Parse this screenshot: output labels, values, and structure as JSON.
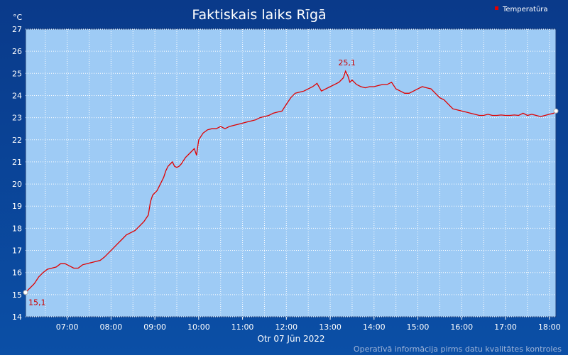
{
  "chart_data": {
    "type": "line",
    "title": "Faktiskais laiks Rīgā",
    "ylabel": "°C",
    "xlabel": "Otr 07 Jūn 2022",
    "footer": "Operatīvā informācija pirms datu kvalitātes kontroles",
    "ylim": [
      14,
      27
    ],
    "xlim": [
      6.05,
      18.15
    ],
    "yticks": [
      14,
      15,
      16,
      17,
      18,
      19,
      20,
      21,
      22,
      23,
      24,
      25,
      26,
      27
    ],
    "xticks": [
      {
        "x": 7,
        "label": "07:00"
      },
      {
        "x": 8,
        "label": "08:00"
      },
      {
        "x": 9,
        "label": "09:00"
      },
      {
        "x": 10,
        "label": "10:00"
      },
      {
        "x": 11,
        "label": "11:00"
      },
      {
        "x": 12,
        "label": "12:00"
      },
      {
        "x": 13,
        "label": "13:00"
      },
      {
        "x": 14,
        "label": "14:00"
      },
      {
        "x": 15,
        "label": "15:00"
      },
      {
        "x": 16,
        "label": "16:00"
      },
      {
        "x": 17,
        "label": "17:00"
      },
      {
        "x": 18,
        "label": "18:00"
      }
    ],
    "grid": true,
    "legend": "top-right",
    "series": [
      {
        "name": "Temperatūra",
        "color": "#e00000",
        "x": [
          6.05,
          6.15,
          6.25,
          6.35,
          6.45,
          6.55,
          6.65,
          6.75,
          6.85,
          6.95,
          7.05,
          7.15,
          7.25,
          7.35,
          7.45,
          7.55,
          7.65,
          7.75,
          7.85,
          7.95,
          8.05,
          8.15,
          8.25,
          8.35,
          8.45,
          8.55,
          8.65,
          8.75,
          8.85,
          8.9,
          8.95,
          9.0,
          9.05,
          9.1,
          9.15,
          9.2,
          9.25,
          9.3,
          9.35,
          9.4,
          9.45,
          9.5,
          9.55,
          9.6,
          9.7,
          9.8,
          9.9,
          9.95,
          10.0,
          10.1,
          10.2,
          10.3,
          10.4,
          10.5,
          10.6,
          10.7,
          10.8,
          10.9,
          11.0,
          11.1,
          11.2,
          11.3,
          11.4,
          11.5,
          11.6,
          11.7,
          11.8,
          11.9,
          12.0,
          12.1,
          12.2,
          12.3,
          12.4,
          12.5,
          12.6,
          12.7,
          12.8,
          12.9,
          13.0,
          13.1,
          13.2,
          13.3,
          13.35,
          13.4,
          13.45,
          13.5,
          13.6,
          13.7,
          13.8,
          13.9,
          14.0,
          14.1,
          14.2,
          14.3,
          14.4,
          14.5,
          14.6,
          14.7,
          14.8,
          14.9,
          15.0,
          15.1,
          15.2,
          15.3,
          15.4,
          15.5,
          15.6,
          15.7,
          15.8,
          15.9,
          16.0,
          16.1,
          16.2,
          16.3,
          16.4,
          16.5,
          16.6,
          16.7,
          16.8,
          16.9,
          17.0,
          17.1,
          17.2,
          17.3,
          17.4,
          17.5,
          17.6,
          17.7,
          17.8,
          17.9,
          18.0,
          18.1,
          18.15
        ],
        "values": [
          15.1,
          15.3,
          15.5,
          15.8,
          16.0,
          16.15,
          16.2,
          16.25,
          16.4,
          16.4,
          16.3,
          16.2,
          16.2,
          16.35,
          16.4,
          16.45,
          16.5,
          16.55,
          16.7,
          16.9,
          17.1,
          17.3,
          17.5,
          17.7,
          17.8,
          17.9,
          18.1,
          18.3,
          18.6,
          19.2,
          19.5,
          19.6,
          19.7,
          19.9,
          20.1,
          20.3,
          20.6,
          20.8,
          20.9,
          21.0,
          20.8,
          20.75,
          20.8,
          20.9,
          21.2,
          21.4,
          21.6,
          21.3,
          22.0,
          22.3,
          22.45,
          22.5,
          22.5,
          22.6,
          22.5,
          22.6,
          22.65,
          22.7,
          22.75,
          22.8,
          22.85,
          22.9,
          23.0,
          23.05,
          23.1,
          23.2,
          23.25,
          23.3,
          23.6,
          23.9,
          24.1,
          24.15,
          24.2,
          24.3,
          24.4,
          24.55,
          24.2,
          24.3,
          24.4,
          24.5,
          24.6,
          24.8,
          25.1,
          24.9,
          24.6,
          24.7,
          24.5,
          24.4,
          24.35,
          24.4,
          24.4,
          24.45,
          24.5,
          24.5,
          24.6,
          24.3,
          24.2,
          24.1,
          24.1,
          24.2,
          24.3,
          24.4,
          24.35,
          24.3,
          24.1,
          23.9,
          23.8,
          23.6,
          23.4,
          23.35,
          23.3,
          23.25,
          23.2,
          23.15,
          23.1,
          23.1,
          23.15,
          23.1,
          23.1,
          23.12,
          23.1,
          23.1,
          23.12,
          23.1,
          23.2,
          23.1,
          23.15,
          23.1,
          23.05,
          23.1,
          23.15,
          23.2,
          23.3
        ]
      }
    ],
    "annotations": [
      {
        "x": 6.05,
        "y": 15.1,
        "text": "15,1"
      },
      {
        "x": 13.35,
        "y": 25.1,
        "text": "25,1"
      }
    ]
  }
}
